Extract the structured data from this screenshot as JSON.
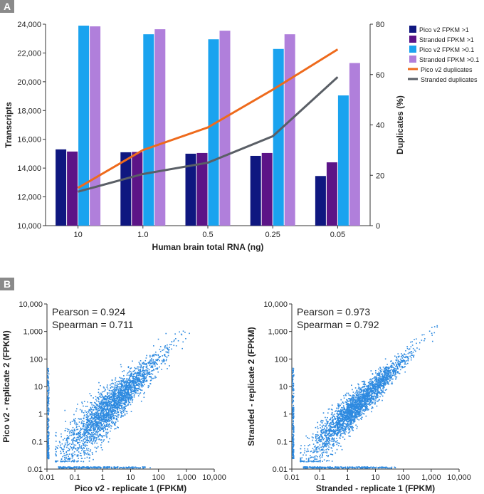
{
  "panels": {
    "a_label": "A",
    "b_label": "B"
  },
  "chart_data": [
    {
      "type": "bar",
      "categories": [
        "10",
        "1.0",
        "0.5",
        "0.25",
        "0.05"
      ],
      "xlabel": "Human brain total RNA (ng)",
      "ylabel": "Transcripts",
      "y2label": "Duplicates (%)",
      "ylim": [
        10000,
        24000
      ],
      "y2lim": [
        0,
        80
      ],
      "yticks": [
        "10,000",
        "12,000",
        "14,000",
        "16,000",
        "18,000",
        "20,000",
        "22,000",
        "24,000"
      ],
      "y2ticks": [
        "0",
        "20",
        "40",
        "60",
        "80"
      ],
      "series": [
        {
          "name": "Pico v2 FPKM >1",
          "color": "#0f1780",
          "values": [
            15300,
            15100,
            15000,
            14850,
            13450
          ]
        },
        {
          "name": "Stranded FPKM >1",
          "color": "#5c1487",
          "values": [
            15150,
            15120,
            15050,
            15050,
            14400
          ]
        },
        {
          "name": "Pico v2 FPKM >0.1",
          "color": "#1aa3ef",
          "values": [
            23900,
            23300,
            22950,
            22280,
            19050
          ]
        },
        {
          "name": "Stranded FPKM >0.1",
          "color": "#b07fdb",
          "values": [
            23850,
            23650,
            23550,
            23300,
            21300
          ]
        }
      ],
      "lines": [
        {
          "name": "Pico v2 duplicates",
          "color": "#ee6a1c",
          "values": [
            15,
            30,
            39,
            54,
            70
          ]
        },
        {
          "name": "Stranded duplicates",
          "color": "#5a5f66",
          "values": [
            13.5,
            20.5,
            25,
            35.5,
            59
          ]
        }
      ],
      "legend_position": "top-right"
    },
    {
      "type": "scatter",
      "scale": "log",
      "xlabel": "Pico v2 - replicate 1 (FPKM)",
      "ylabel": "Pico v2 - replicate 2 (FPKM)",
      "xlim": [
        0.01,
        10000
      ],
      "ylim": [
        0.01,
        10000
      ],
      "xticks": [
        "0.01",
        "0.1",
        "1",
        "10",
        "100",
        "1,000",
        "10,000"
      ],
      "yticks": [
        "0.01",
        "0.1",
        "1",
        "10",
        "100",
        "1,000",
        "10,000"
      ],
      "annotation_1": "Pearson = 0.924",
      "annotation_2": "Spearman = 0.711",
      "color": "#2e8ae0"
    },
    {
      "type": "scatter",
      "scale": "log",
      "xlabel": "Stranded - replicate 1 (FPKM)",
      "ylabel": "Stranded - replicate 2 (FPKM)",
      "xlim": [
        0.01,
        10000
      ],
      "ylim": [
        0.01,
        10000
      ],
      "xticks": [
        "0.01",
        "0.1",
        "1",
        "10",
        "100",
        "1,000",
        "10,000"
      ],
      "yticks": [
        "0.01",
        "0.1",
        "1",
        "10",
        "100",
        "1,000",
        "10,000"
      ],
      "annotation_1": "Pearson = 0.973",
      "annotation_2": "Spearman = 0.792",
      "color": "#2e8ae0"
    }
  ]
}
